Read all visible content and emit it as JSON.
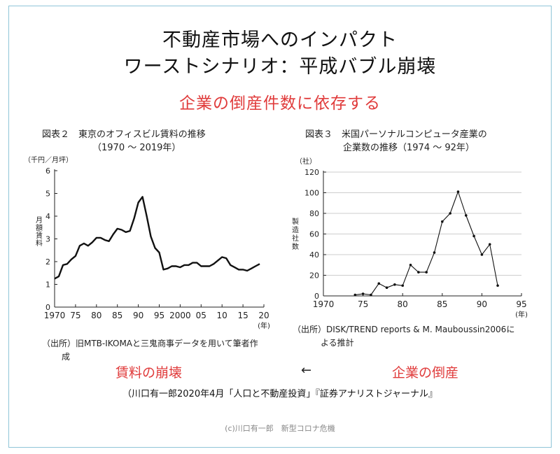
{
  "slide": {
    "title_line1": "不動産市場へのインパクト",
    "title_line2": "ワーストシナリオ：平成バブル崩壊",
    "subtitle": "企業の倒産件数に依存する",
    "left_caption_line1": "図表２　東京のオフィスビル賃料の推移",
    "left_caption_line2": "（1970 〜 2019年）",
    "left_source_line1": "（出所）旧MTB-IKOMAと三鬼商事データを用いて筆者作",
    "left_source_line2": "成",
    "right_caption_line1": "図表３　米国パーソナルコンピュータ産業の",
    "right_caption_line2": "企業数の推移（1974 〜 92年）",
    "right_source_line1": "（出所）DISK/TREND reports & M. Mauboussin2006に",
    "right_source_line2": "よる推計",
    "red_left": "賃料の崩壊",
    "arrow": "←",
    "red_right": "企業の倒産",
    "citation": "（川口有一郎2020年4月「人口と不動産投資」『証券アナリストジャーナル』",
    "footer": "(c)川口有一郎　新型コロナ危機"
  },
  "chart_data": [
    {
      "type": "line",
      "ylabel_unit": "（千円／月坪）",
      "ylabel": "月額賃料",
      "xunit": "(年)",
      "ylim": [
        0,
        6
      ],
      "yticks": [
        0,
        1,
        2,
        3,
        4,
        5,
        6
      ],
      "xlim": [
        1970,
        2020
      ],
      "xticks": [
        1970,
        1975,
        1980,
        1985,
        1990,
        1995,
        2000,
        2005,
        2010,
        2015,
        2020
      ],
      "xtick_labels": [
        "1970",
        "75",
        "80",
        "85",
        "90",
        "95",
        "2000",
        "05",
        "10",
        "15",
        "20"
      ],
      "grid": false,
      "x": [
        1970,
        1971,
        1972,
        1973,
        1974,
        1975,
        1976,
        1977,
        1978,
        1979,
        1980,
        1981,
        1982,
        1983,
        1984,
        1985,
        1986,
        1987,
        1988,
        1989,
        1990,
        1991,
        1992,
        1993,
        1994,
        1995,
        1996,
        1997,
        1998,
        1999,
        2000,
        2001,
        2002,
        2003,
        2004,
        2005,
        2006,
        2007,
        2008,
        2009,
        2010,
        2011,
        2012,
        2013,
        2014,
        2015,
        2016,
        2017,
        2018,
        2019
      ],
      "y": [
        1.25,
        1.35,
        1.85,
        1.9,
        2.1,
        2.25,
        2.7,
        2.8,
        2.7,
        2.85,
        3.05,
        3.05,
        2.95,
        2.9,
        3.2,
        3.45,
        3.4,
        3.3,
        3.35,
        3.9,
        4.6,
        4.85,
        4.0,
        3.1,
        2.6,
        2.4,
        1.65,
        1.7,
        1.8,
        1.8,
        1.75,
        1.85,
        1.85,
        1.95,
        1.95,
        1.8,
        1.8,
        1.8,
        1.9,
        2.05,
        2.2,
        2.15,
        1.85,
        1.75,
        1.65,
        1.65,
        1.6,
        1.7,
        1.8,
        1.9
      ]
    },
    {
      "type": "line",
      "ylabel_unit": "（社）",
      "ylabel": "製造社数",
      "xunit": "(年)",
      "ylim": [
        0,
        120
      ],
      "yticks": [
        0,
        20,
        40,
        60,
        80,
        100,
        120
      ],
      "xlim": [
        1970,
        1995
      ],
      "xticks": [
        1970,
        1975,
        1980,
        1985,
        1990,
        1995
      ],
      "xtick_labels": [
        "1970",
        "75",
        "80",
        "85",
        "90",
        "95"
      ],
      "grid": true,
      "x": [
        1974,
        1975,
        1976,
        1977,
        1978,
        1979,
        1980,
        1981,
        1982,
        1983,
        1984,
        1985,
        1986,
        1987,
        1988,
        1989,
        1990,
        1991,
        1992
      ],
      "y": [
        1,
        2,
        1,
        12,
        8,
        11,
        10,
        30,
        23,
        23,
        42,
        72,
        80,
        101,
        78,
        58,
        40,
        50,
        10
      ]
    }
  ]
}
